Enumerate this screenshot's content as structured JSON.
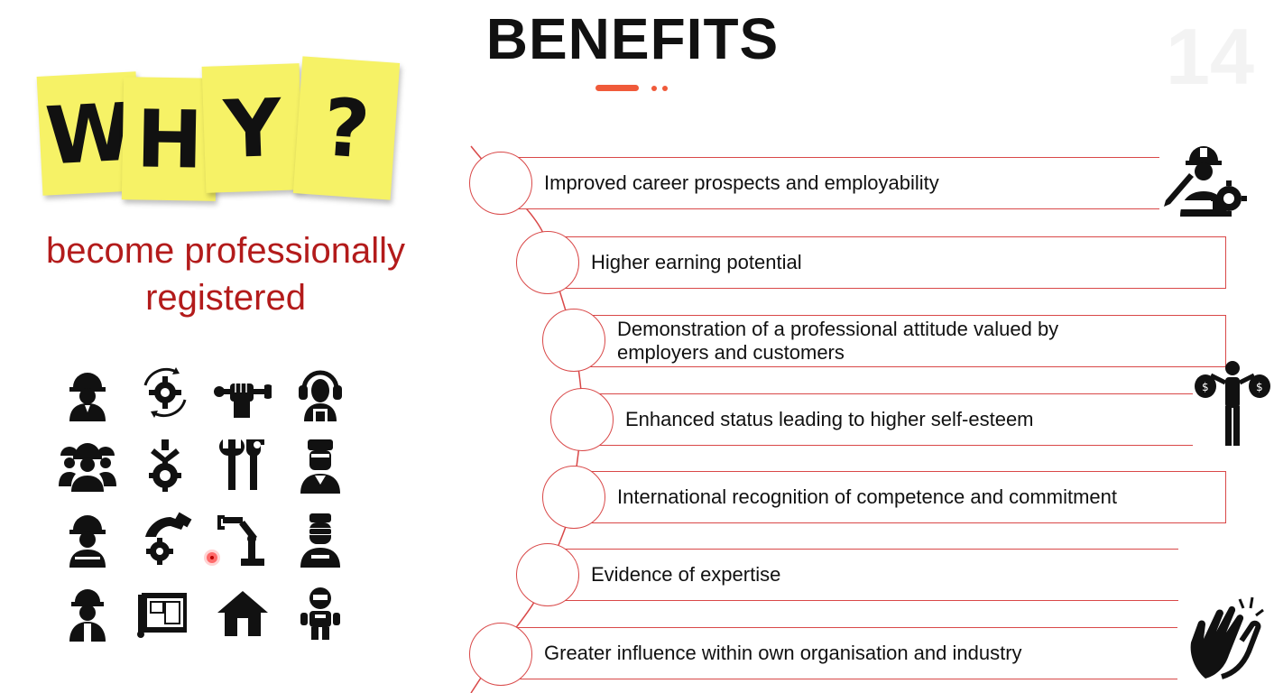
{
  "slide": {
    "title": "BENEFITS",
    "page_number": "14",
    "accent_color": "#d94848",
    "subtitle_color": "#b31b1b"
  },
  "why_notes": [
    "W",
    "H",
    "Y",
    "?"
  ],
  "subtitle": {
    "line1": "become professionally",
    "line2": "registered"
  },
  "icon_grid": [
    "engineer-hardhat-icon",
    "gear-cycle-icon",
    "fist-wrench-icon",
    "headset-worker-icon",
    "team-hardhat-icon",
    "robot-arm-gear-icon",
    "wrenches-icon",
    "welder-icon",
    "worker-hardhat-icon",
    "hand-gear-icon",
    "industrial-robot-icon",
    "vr-worker-icon",
    "builder-icon",
    "blueprint-icon",
    "house-icon",
    "robot-icon"
  ],
  "benefits": [
    "Improved career prospects and employability",
    "Higher earning potential",
    "Demonstration of a professional attitude valued by employers and customers",
    "Enhanced status leading to higher self-esteem",
    "International recognition of competence and commitment",
    "Evidence of expertise",
    "Greater influence within own organisation and industry"
  ],
  "side_icons": [
    "engineer-with-gear-icon",
    "money-bags-man-icon",
    "clapping-hands-icon"
  ]
}
